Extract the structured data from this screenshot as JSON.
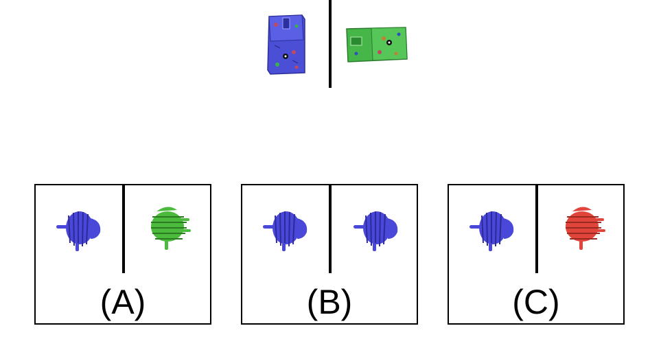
{
  "question": {
    "left_item": {
      "icon": "blue-vertical-patterned-bag-icon",
      "color": "#4a4fd6"
    },
    "right_item": {
      "icon": "green-horizontal-patterned-bag-icon",
      "color": "#46b648"
    }
  },
  "options": [
    {
      "label": "(A)",
      "left_icon": "blue-coil-creature-icon",
      "left_color": "#4a48d8",
      "right_icon": "green-coil-creature-icon",
      "right_color": "#4cba3c"
    },
    {
      "label": "(B)",
      "left_icon": "blue-coil-creature-icon",
      "left_color": "#4a48d8",
      "right_icon": "blue-coil-creature-icon",
      "right_color": "#4a48d8"
    },
    {
      "label": "(C)",
      "left_icon": "blue-coil-creature-icon",
      "left_color": "#4a48d8",
      "right_icon": "red-coil-creature-icon",
      "right_color": "#e0443a"
    }
  ]
}
